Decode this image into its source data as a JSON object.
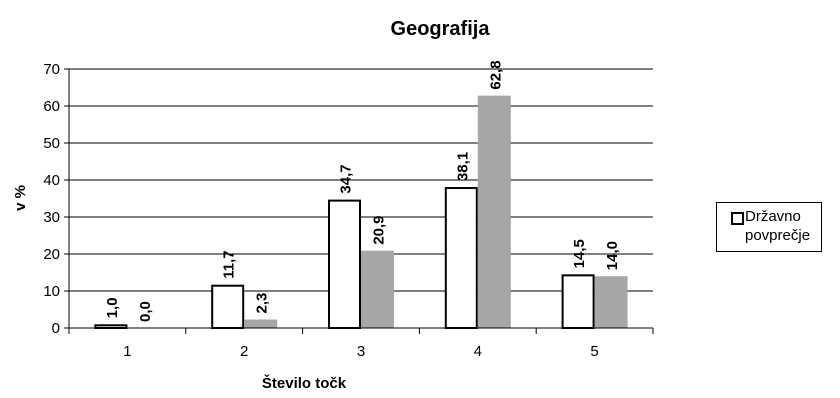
{
  "chart_data": {
    "type": "bar",
    "title": "Geografija",
    "xlabel": "Število točk",
    "ylabel": "v %",
    "categories": [
      "1",
      "2",
      "3",
      "4",
      "5"
    ],
    "ylim": [
      0,
      70
    ],
    "yticks": [
      0,
      10,
      20,
      30,
      40,
      50,
      60,
      70
    ],
    "grid": true,
    "legend_position": "right",
    "series": [
      {
        "name": "Državno povprečje",
        "values": [
          1.0,
          11.7,
          34.7,
          38.1,
          14.5
        ],
        "labels": [
          "1,0",
          "11,7",
          "34,7",
          "38,1",
          "14,5"
        ],
        "color": "#ffffff"
      },
      {
        "values": [
          0.0,
          2.3,
          20.9,
          62.8,
          14.0
        ],
        "labels": [
          "0,0",
          "2,3",
          "20,9",
          "62,8",
          "14,0"
        ],
        "color": "#a6a6a6"
      }
    ]
  }
}
